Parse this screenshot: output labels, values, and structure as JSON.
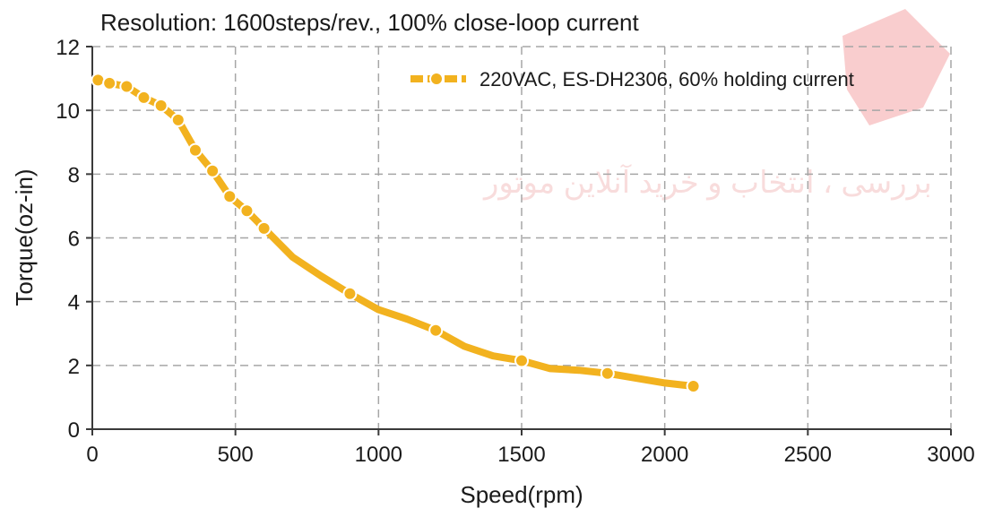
{
  "chart_data": {
    "type": "line",
    "title": "Resolution: 1600steps/rev., 100% close-loop current",
    "xlabel": "Speed(rpm)",
    "ylabel": "Torque(oz-in)",
    "xlim": [
      0,
      3000
    ],
    "ylim": [
      0,
      12
    ],
    "xticks": [
      0,
      500,
      1000,
      1500,
      2000,
      2500,
      3000
    ],
    "yticks": [
      0,
      2,
      4,
      6,
      8,
      10,
      12
    ],
    "grid": true,
    "legend_position": "top-right",
    "series": [
      {
        "name": "220VAC, ES-DH2306, 60% holding current",
        "color": "#f2b21f",
        "x": [
          20,
          60,
          120,
          180,
          240,
          300,
          360,
          420,
          480,
          540,
          600,
          700,
          800,
          900,
          1000,
          1100,
          1200,
          1300,
          1400,
          1500,
          1600,
          1700,
          1800,
          1900,
          2000,
          2100
        ],
        "y": [
          10.95,
          10.85,
          10.75,
          10.4,
          10.15,
          9.7,
          8.75,
          8.1,
          7.3,
          6.85,
          6.3,
          5.4,
          4.8,
          4.25,
          3.75,
          3.45,
          3.1,
          2.6,
          2.3,
          2.15,
          1.9,
          1.85,
          1.75,
          1.6,
          1.45,
          1.35
        ],
        "markers": [
          true,
          true,
          true,
          true,
          true,
          true,
          true,
          true,
          true,
          true,
          true,
          false,
          false,
          true,
          false,
          false,
          true,
          false,
          false,
          true,
          false,
          false,
          true,
          false,
          false,
          true
        ]
      }
    ]
  },
  "watermark": {
    "text": "بررسی ، انتخاب و خرید آنلاین موتور",
    "logo_color": "#e8393a"
  }
}
